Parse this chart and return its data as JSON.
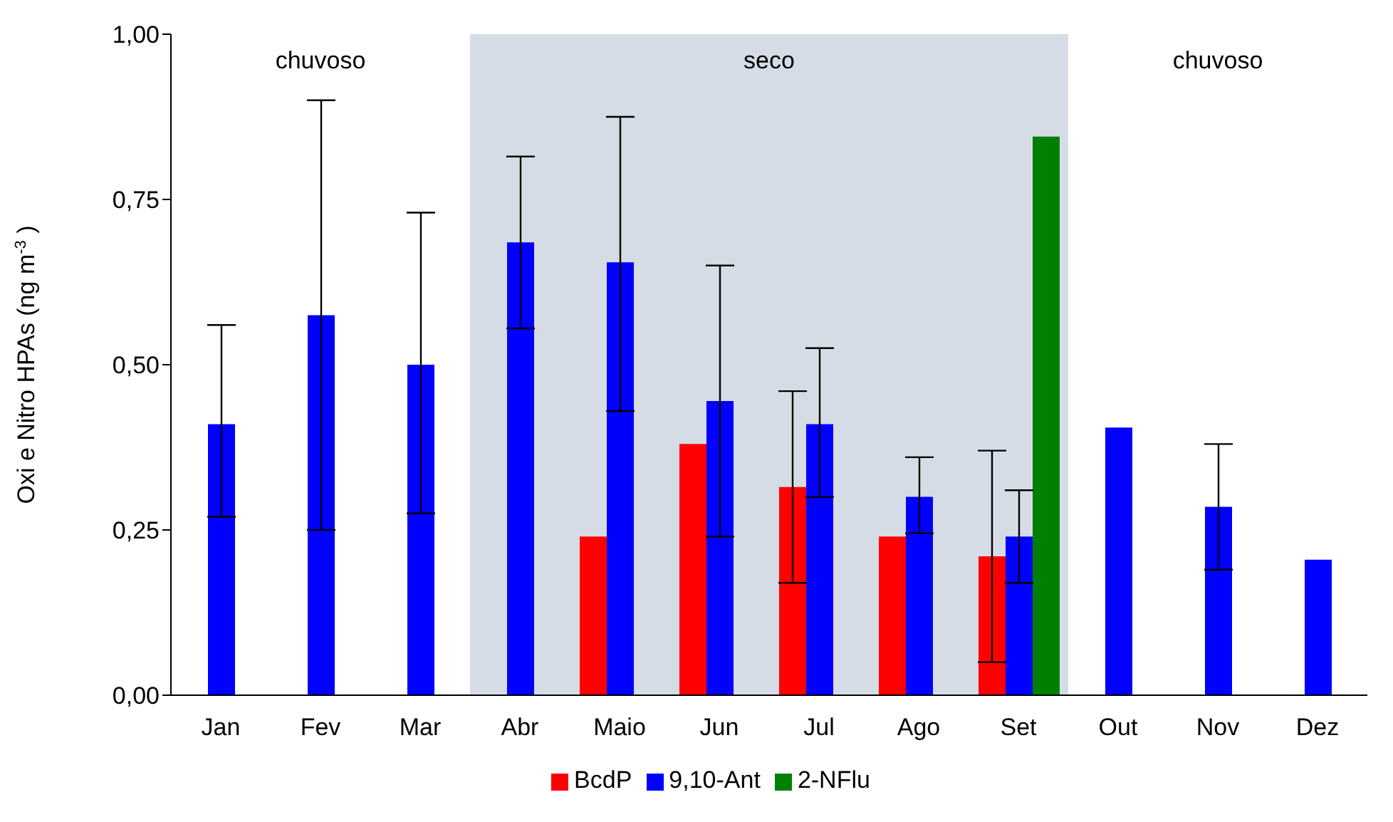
{
  "chart_data": {
    "type": "bar",
    "ylabel": "Oxi e Nitro HPAs (ng m$^{-3}$)",
    "categories": [
      "Jan",
      "Fev",
      "Mar",
      "Abr",
      "Maio",
      "Jun",
      "Jul",
      "Ago",
      "Set",
      "Out",
      "Nov",
      "Dez"
    ],
    "series": [
      {
        "name": "BcdP",
        "color": "#ff0000",
        "values": [
          null,
          null,
          null,
          null,
          0.24,
          0.38,
          0.315,
          0.24,
          0.21,
          null,
          null,
          null
        ],
        "errors": [
          null,
          null,
          null,
          null,
          null,
          null,
          [
            0.17,
            0.46
          ],
          null,
          [
            0.05,
            0.37
          ],
          null,
          null,
          null
        ]
      },
      {
        "name": "9,10-Ant",
        "color": "#0000ff",
        "values": [
          0.41,
          0.575,
          0.5,
          0.685,
          0.655,
          0.445,
          0.41,
          0.3,
          0.24,
          0.405,
          0.285,
          0.205
        ],
        "errors": [
          [
            0.27,
            0.56
          ],
          [
            0.25,
            0.9
          ],
          [
            0.275,
            0.73
          ],
          [
            0.555,
            0.815
          ],
          [
            0.43,
            0.875
          ],
          [
            0.24,
            0.65
          ],
          [
            0.3,
            0.525
          ],
          [
            0.245,
            0.36
          ],
          [
            0.17,
            0.31
          ],
          null,
          [
            0.19,
            0.38
          ],
          null
        ]
      },
      {
        "name": "2-NFlu",
        "color": "#008000",
        "values": [
          null,
          null,
          null,
          null,
          null,
          null,
          null,
          null,
          0.845,
          null,
          null,
          null
        ]
      }
    ],
    "ylim": [
      0,
      1
    ],
    "yticks": [
      {
        "value": 0,
        "label": "0,00"
      },
      {
        "value": 0.25,
        "label": "0,25"
      },
      {
        "value": 0.5,
        "label": "0,50"
      },
      {
        "value": 0.75,
        "label": "0,75"
      },
      {
        "value": 1,
        "label": "1,00"
      }
    ],
    "bands": [
      {
        "axis": "x",
        "from": "Abr",
        "to": "Set",
        "label": "seco",
        "color": "#d6dce5"
      }
    ],
    "annotations": [
      "chuvoso",
      "chuvoso"
    ],
    "legend": "bottom",
    "grid": false
  }
}
